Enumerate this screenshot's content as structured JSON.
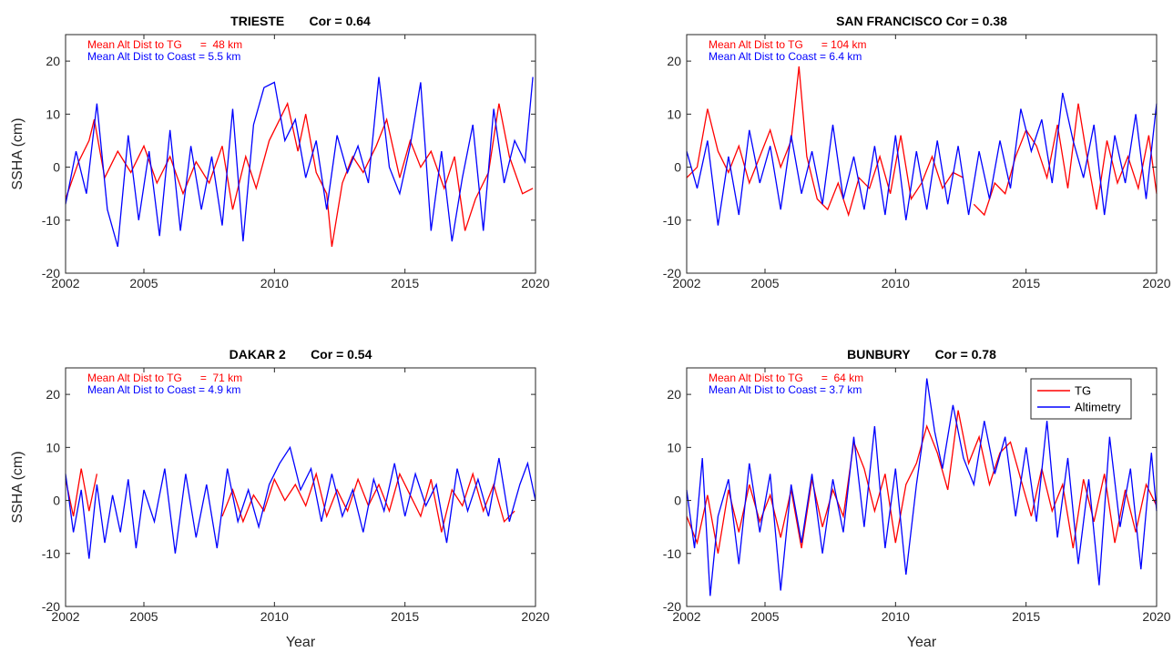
{
  "figure": {
    "ylabel": "SSHA (cm)",
    "xlabel": "Year"
  },
  "legend": {
    "items": [
      "TG",
      "Altimetry"
    ],
    "colors": [
      "#ff0000",
      "#0000ff"
    ],
    "location": "top-right of BUNBURY panel"
  },
  "colors": {
    "tg": "#ff0000",
    "altimetry": "#0000ff",
    "axis": "#262626"
  },
  "chart_data": [
    {
      "type": "line",
      "title": "TRIESTE       Cor = 0.64",
      "annotations": [
        "Mean Alt Dist to TG      =  48 km",
        "Mean Alt Dist to Coast = 5.5 km"
      ],
      "xlim": [
        2002,
        2020
      ],
      "ylim": [
        -20,
        25
      ],
      "xticks": [
        2002,
        2005,
        2010,
        2015,
        2020
      ],
      "yticks": [
        -20,
        -10,
        0,
        10,
        20
      ],
      "ylabel": "SSHA (cm)",
      "xlabel": "",
      "grid": false,
      "legend": false,
      "series": [
        {
          "name": "TG",
          "color": "#ff0000",
          "x": [
            2002.0,
            2002.5,
            2002.9,
            2003.1,
            2003.5,
            2004.0,
            2004.5,
            2005.0,
            2005.5,
            2006.0,
            2006.5,
            2007.0,
            2007.5,
            2008.0,
            2008.4,
            2008.9,
            2009.3,
            2009.8,
            2010.2,
            2010.5,
            2010.9,
            2011.2,
            2011.6,
            2012.0,
            2012.2,
            2012.6,
            2013.0,
            2013.4,
            2013.9,
            2014.3,
            2014.8,
            2015.2,
            2015.6,
            2016.0,
            2016.5,
            2016.9,
            2017.3,
            2017.7,
            2018.2,
            2018.6,
            2019.0,
            2019.5,
            2019.9
          ],
          "y": [
            -6,
            1,
            5,
            9,
            -2,
            3,
            -1,
            4,
            -3,
            2,
            -5,
            1,
            -3,
            4,
            -8,
            2,
            -4,
            5,
            9,
            12,
            3,
            10,
            -1,
            -5,
            -15,
            -3,
            2,
            -1,
            4,
            9,
            -2,
            5,
            0,
            3,
            -4,
            2,
            -12,
            -6,
            -1,
            12,
            2,
            -5,
            -4
          ]
        },
        {
          "name": "Altimetry",
          "color": "#0000ff",
          "x": [
            2002.0,
            2002.4,
            2002.8,
            2003.2,
            2003.6,
            2004.0,
            2004.4,
            2004.8,
            2005.2,
            2005.6,
            2006.0,
            2006.4,
            2006.8,
            2007.2,
            2007.6,
            2008.0,
            2008.4,
            2008.8,
            2009.2,
            2009.6,
            2010.0,
            2010.4,
            2010.8,
            2011.2,
            2011.6,
            2012.0,
            2012.4,
            2012.8,
            2013.2,
            2013.6,
            2014.0,
            2014.4,
            2014.8,
            2015.2,
            2015.6,
            2016.0,
            2016.4,
            2016.8,
            2017.2,
            2017.6,
            2018.0,
            2018.4,
            2018.8,
            2019.2,
            2019.6,
            2019.9
          ],
          "y": [
            -7,
            3,
            -5,
            12,
            -8,
            -15,
            6,
            -10,
            3,
            -13,
            7,
            -12,
            4,
            -8,
            2,
            -11,
            11,
            -14,
            8,
            15,
            16,
            5,
            9,
            -2,
            5,
            -8,
            6,
            -1,
            4,
            -3,
            17,
            0,
            -5,
            4,
            16,
            -12,
            3,
            -14,
            -2,
            8,
            -12,
            11,
            -3,
            5,
            1,
            17
          ]
        }
      ]
    },
    {
      "type": "line",
      "title": "SAN FRANCISCO Cor = 0.38",
      "annotations": [
        "Mean Alt Dist to TG      = 104 km",
        "Mean Alt Dist to Coast = 6.4 km"
      ],
      "xlim": [
        2002,
        2020
      ],
      "ylim": [
        -20,
        25
      ],
      "xticks": [
        2002,
        2005,
        2010,
        2015,
        2020
      ],
      "yticks": [
        -20,
        -10,
        0,
        10,
        20
      ],
      "ylabel": "",
      "xlabel": "",
      "grid": false,
      "legend": false,
      "series": [
        {
          "name": "TG",
          "color": "#ff0000",
          "x": [
            2002.0,
            2002.4,
            2002.8,
            2003.2,
            2003.6,
            2004.0,
            2004.4,
            2004.8,
            2005.2,
            2005.6,
            2006.0,
            2006.3,
            2006.6,
            2007.0,
            2007.4,
            2007.8,
            2008.2,
            2008.6,
            2009.0,
            2009.4,
            2009.8,
            2010.2,
            2010.6,
            2011.0,
            2011.4,
            2011.8,
            2012.2,
            2012.6
          ],
          "y": [
            -2,
            0,
            11,
            3,
            -1,
            4,
            -3,
            2,
            7,
            0,
            5,
            19,
            2,
            -6,
            -8,
            -3,
            -9,
            -2,
            -4,
            2,
            -5,
            6,
            -6,
            -3,
            2,
            -4,
            -1,
            -2
          ]
        },
        {
          "name": "TG",
          "color": "#ff0000",
          "x": [
            2013.0,
            2013.4,
            2013.8,
            2014.2,
            2014.6,
            2015.0,
            2015.4,
            2015.8,
            2016.2,
            2016.6,
            2017.0,
            2017.3,
            2017.7,
            2018.1,
            2018.5,
            2018.9,
            2019.3,
            2019.7,
            2020.0
          ],
          "y": [
            -7,
            -9,
            -3,
            -5,
            2,
            7,
            4,
            -2,
            8,
            -4,
            12,
            3,
            -8,
            5,
            -3,
            2,
            -4,
            6,
            -5
          ]
        },
        {
          "name": "Altimetry",
          "color": "#0000ff",
          "x": [
            2002.0,
            2002.4,
            2002.8,
            2003.2,
            2003.6,
            2004.0,
            2004.4,
            2004.8,
            2005.2,
            2005.6,
            2006.0,
            2006.4,
            2006.8,
            2007.2,
            2007.6,
            2008.0,
            2008.4,
            2008.8,
            2009.2,
            2009.6,
            2010.0,
            2010.4,
            2010.8,
            2011.2,
            2011.6,
            2012.0,
            2012.4,
            2012.8,
            2013.2,
            2013.6,
            2014.0,
            2014.4,
            2014.8,
            2015.2,
            2015.6,
            2016.0,
            2016.4,
            2016.8,
            2017.2,
            2017.6,
            2018.0,
            2018.4,
            2018.8,
            2019.2,
            2019.6,
            2020.0
          ],
          "y": [
            3,
            -4,
            5,
            -11,
            2,
            -9,
            7,
            -3,
            4,
            -8,
            6,
            -5,
            3,
            -7,
            8,
            -6,
            2,
            -8,
            4,
            -9,
            6,
            -10,
            3,
            -8,
            5,
            -7,
            4,
            -9,
            3,
            -6,
            5,
            -4,
            11,
            3,
            9,
            -3,
            14,
            5,
            -2,
            8,
            -9,
            6,
            -3,
            10,
            -6,
            12
          ]
        }
      ]
    },
    {
      "type": "line",
      "title": "DAKAR 2       Cor = 0.54",
      "annotations": [
        "Mean Alt Dist to TG      =  71 km",
        "Mean Alt Dist to Coast = 4.9 km"
      ],
      "xlim": [
        2002,
        2020
      ],
      "ylim": [
        -20,
        25
      ],
      "xticks": [
        2002,
        2005,
        2010,
        2015,
        2020
      ],
      "yticks": [
        -20,
        -10,
        0,
        10,
        20
      ],
      "ylabel": "SSHA (cm)",
      "xlabel": "Year",
      "grid": false,
      "legend": false,
      "series": [
        {
          "name": "TG",
          "color": "#ff0000",
          "x": [
            2002.0,
            2002.3,
            2002.6,
            2002.9,
            2003.2
          ],
          "y": [
            4,
            -3,
            6,
            -2,
            5
          ]
        },
        {
          "name": "TG",
          "color": "#ff0000",
          "x": [
            2008.0,
            2008.4,
            2008.8,
            2009.2,
            2009.6,
            2010.0,
            2010.4,
            2010.8,
            2011.2,
            2011.6,
            2012.0,
            2012.4,
            2012.8,
            2013.2,
            2013.6,
            2014.0,
            2014.4,
            2014.8,
            2015.2,
            2015.6,
            2016.0,
            2016.4,
            2016.8,
            2017.2,
            2017.6,
            2018.0,
            2018.4,
            2018.8,
            2019.2
          ],
          "y": [
            -3,
            2,
            -4,
            1,
            -2,
            4,
            0,
            3,
            -1,
            5,
            -3,
            2,
            -2,
            4,
            -1,
            3,
            -2,
            5,
            1,
            -3,
            4,
            -6,
            2,
            -1,
            5,
            -2,
            3,
            -4,
            -2
          ]
        },
        {
          "name": "Altimetry",
          "color": "#0000ff",
          "x": [
            2002.0,
            2002.3,
            2002.6,
            2002.9,
            2003.2,
            2003.5,
            2003.8,
            2004.1,
            2004.4,
            2004.7,
            2005.0,
            2005.4,
            2005.8,
            2006.2,
            2006.6,
            2007.0,
            2007.4,
            2007.8,
            2008.2,
            2008.6,
            2009.0,
            2009.4,
            2009.8,
            2010.2,
            2010.6,
            2011.0,
            2011.4,
            2011.8,
            2012.2,
            2012.6,
            2013.0,
            2013.4,
            2013.8,
            2014.2,
            2014.6,
            2015.0,
            2015.4,
            2015.8,
            2016.2,
            2016.6,
            2017.0,
            2017.4,
            2017.8,
            2018.2,
            2018.6,
            2019.0,
            2019.4,
            2019.7,
            2020.0
          ],
          "y": [
            5,
            -6,
            2,
            -11,
            3,
            -8,
            1,
            -6,
            4,
            -9,
            2,
            -4,
            6,
            -10,
            5,
            -7,
            3,
            -9,
            6,
            -4,
            2,
            -5,
            3,
            7,
            10,
            2,
            6,
            -4,
            5,
            -3,
            2,
            -6,
            4,
            -2,
            7,
            -3,
            5,
            -1,
            3,
            -8,
            6,
            -2,
            4,
            -3,
            8,
            -4,
            3,
            7,
            0
          ]
        }
      ]
    },
    {
      "type": "line",
      "title": "BUNBURY       Cor = 0.78",
      "annotations": [
        "Mean Alt Dist to TG      =  64 km",
        "Mean Alt Dist to Coast = 3.7 km"
      ],
      "xlim": [
        2002,
        2020
      ],
      "ylim": [
        -20,
        25
      ],
      "xticks": [
        2002,
        2005,
        2010,
        2015,
        2020
      ],
      "yticks": [
        -20,
        -10,
        0,
        10,
        20
      ],
      "ylabel": "",
      "xlabel": "Year",
      "grid": false,
      "legend": true,
      "series": [
        {
          "name": "TG",
          "color": "#ff0000",
          "x": [
            2002.0,
            2002.4,
            2002.8,
            2003.2,
            2003.6,
            2004.0,
            2004.4,
            2004.8,
            2005.2,
            2005.6,
            2006.0,
            2006.4,
            2006.8,
            2007.2,
            2007.6,
            2008.0,
            2008.4,
            2008.8,
            2009.2,
            2009.6,
            2010.0,
            2010.4,
            2010.8,
            2011.2,
            2011.6,
            2012.0,
            2012.4,
            2012.8,
            2013.2,
            2013.6,
            2014.0,
            2014.4,
            2014.8,
            2015.2,
            2015.6,
            2016.0,
            2016.4,
            2016.8,
            2017.2,
            2017.6,
            2018.0,
            2018.4,
            2018.8,
            2019.2,
            2019.6,
            2020.0
          ],
          "y": [
            -3,
            -8,
            1,
            -10,
            2,
            -6,
            3,
            -4,
            1,
            -7,
            2,
            -9,
            4,
            -5,
            2,
            -3,
            11,
            6,
            -2,
            5,
            -8,
            3,
            7,
            14,
            9,
            2,
            17,
            7,
            12,
            3,
            9,
            11,
            4,
            -3,
            6,
            -2,
            3,
            -9,
            4,
            -4,
            5,
            -8,
            2,
            -6,
            3,
            -1
          ]
        },
        {
          "name": "Altimetry",
          "color": "#0000ff",
          "x": [
            2002.0,
            2002.3,
            2002.6,
            2002.9,
            2003.2,
            2003.6,
            2004.0,
            2004.4,
            2004.8,
            2005.2,
            2005.6,
            2006.0,
            2006.4,
            2006.8,
            2007.2,
            2007.6,
            2008.0,
            2008.4,
            2008.8,
            2009.2,
            2009.6,
            2010.0,
            2010.4,
            2010.8,
            2011.0,
            2011.2,
            2011.5,
            2011.8,
            2012.2,
            2012.6,
            2013.0,
            2013.4,
            2013.8,
            2014.2,
            2014.6,
            2015.0,
            2015.4,
            2015.8,
            2016.2,
            2016.6,
            2017.0,
            2017.4,
            2017.8,
            2018.2,
            2018.6,
            2019.0,
            2019.4,
            2019.8,
            2020.0
          ],
          "y": [
            2,
            -9,
            8,
            -18,
            -3,
            4,
            -12,
            7,
            -6,
            5,
            -17,
            3,
            -8,
            5,
            -10,
            4,
            -6,
            12,
            -5,
            14,
            -9,
            6,
            -14,
            3,
            10,
            23,
            13,
            6,
            18,
            8,
            3,
            15,
            5,
            12,
            -3,
            10,
            -4,
            15,
            -7,
            8,
            -12,
            4,
            -16,
            12,
            -5,
            6,
            -13,
            9,
            -2
          ]
        }
      ]
    }
  ]
}
